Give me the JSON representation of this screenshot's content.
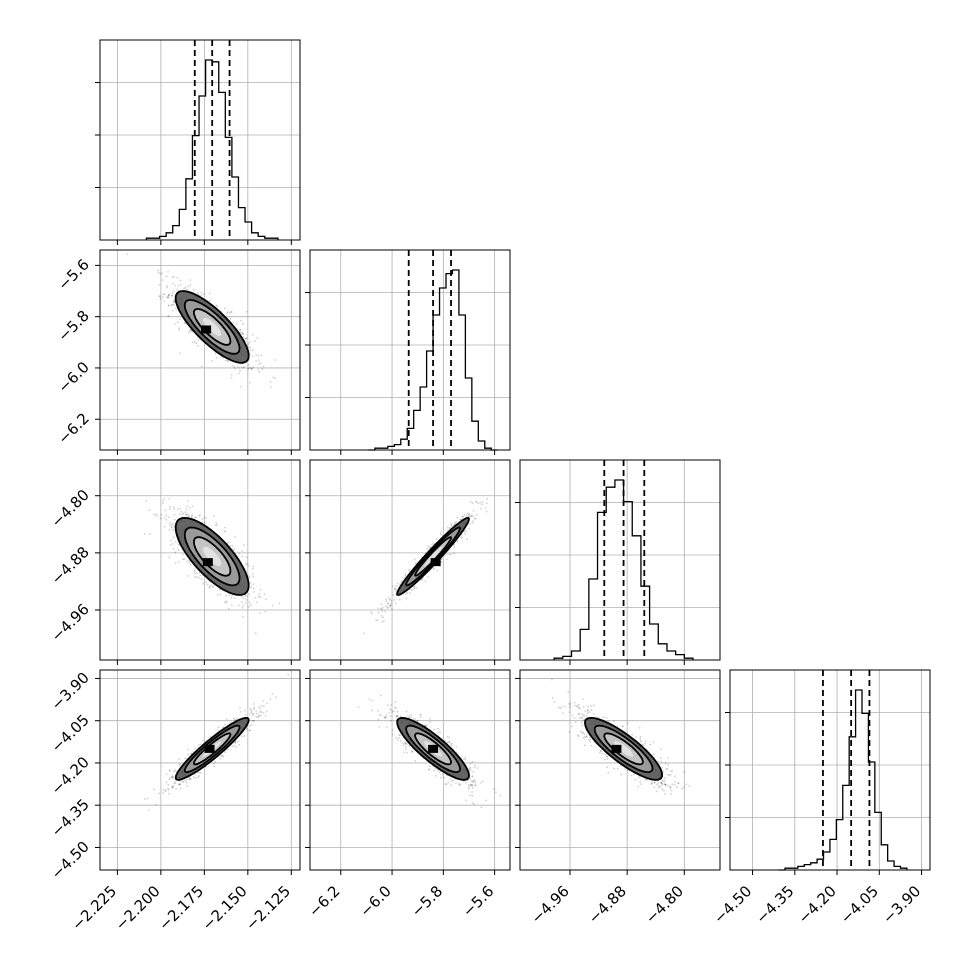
{
  "chart_data": {
    "type": "scatter",
    "kind": "corner-plot",
    "grid": true,
    "colors": {
      "line": "#000000",
      "grid": "#b0b0b0",
      "points": "#000000",
      "background": "#ffffff"
    },
    "parameters": [
      {
        "id": "p0",
        "range": [
          -2.235,
          -2.12
        ],
        "ticks": [
          "−2.225",
          "−2.200",
          "−2.175",
          "−2.150",
          "−2.125"
        ],
        "tick_values": [
          -2.225,
          -2.2,
          -2.175,
          -2.15,
          -2.125
        ],
        "mean": -2.1705,
        "sd": 0.0105,
        "quantiles": [
          -2.1805,
          -2.1705,
          -2.1605
        ],
        "hist": [
          1,
          1,
          2,
          4,
          8,
          17,
          34,
          58,
          80,
          100,
          99,
          82,
          57,
          35,
          18,
          10,
          4,
          2,
          1,
          1
        ]
      },
      {
        "id": "p1",
        "range": [
          -6.32,
          -5.54
        ],
        "ticks": [
          "−6.2",
          "−6.0",
          "−5.8",
          "−5.6"
        ],
        "tick_values": [
          -6.2,
          -6.0,
          -5.8,
          -5.6
        ],
        "mean": -5.84,
        "sd": 0.07,
        "quantiles": [
          -5.935,
          -5.84,
          -5.77
        ],
        "hist": [
          0,
          1,
          1,
          2,
          3,
          6,
          12,
          22,
          35,
          55,
          75,
          90,
          98,
          100,
          75,
          40,
          16,
          5,
          1,
          0
        ]
      },
      {
        "id": "p2",
        "range": [
          -5.03,
          -4.75
        ],
        "ticks": [
          "−4.96",
          "−4.88",
          "−4.80"
        ],
        "tick_values": [
          -4.96,
          -4.88,
          -4.8
        ],
        "mean": -4.885,
        "sd": 0.027,
        "quantiles": [
          -4.912,
          -4.885,
          -4.856
        ],
        "hist": [
          1,
          2,
          5,
          17,
          45,
          82,
          96,
          100,
          88,
          69,
          41,
          20,
          9,
          5,
          3,
          1
        ]
      },
      {
        "id": "p3",
        "range": [
          -4.58,
          -3.87
        ],
        "ticks": [
          "−4.50",
          "−4.35",
          "−4.20",
          "−4.05",
          "−3.90"
        ],
        "tick_values": [
          -4.5,
          -4.35,
          -4.2,
          -4.05,
          -3.9
        ],
        "mean": -4.15,
        "sd": 0.055,
        "quantiles": [
          -4.25,
          -4.15,
          -4.085
        ],
        "hist": [
          0,
          1,
          1,
          2,
          3,
          4,
          6,
          10,
          17,
          28,
          47,
          74,
          100,
          87,
          60,
          32,
          14,
          5,
          2,
          1
        ]
      }
    ],
    "correlations": [
      {
        "x": "p0",
        "y": "p1",
        "r": -0.8,
        "peak": [
          -2.174,
          -5.85
        ]
      },
      {
        "x": "p0",
        "y": "p2",
        "r": -0.75,
        "peak": [
          -2.173,
          -4.893
        ]
      },
      {
        "x": "p0",
        "y": "p3",
        "r": 0.93,
        "peak": [
          -2.172,
          -4.15
        ]
      },
      {
        "x": "p1",
        "y": "p2",
        "r": 0.97,
        "peak": [
          -5.83,
          -4.893
        ]
      },
      {
        "x": "p1",
        "y": "p3",
        "r": -0.86,
        "peak": [
          -5.84,
          -4.15
        ]
      },
      {
        "x": "p2",
        "y": "p3",
        "r": -0.84,
        "peak": [
          -4.895,
          -4.15
        ]
      }
    ],
    "contour_levels_sigma": [
      0.5,
      1.0,
      1.5,
      2.0
    ]
  }
}
